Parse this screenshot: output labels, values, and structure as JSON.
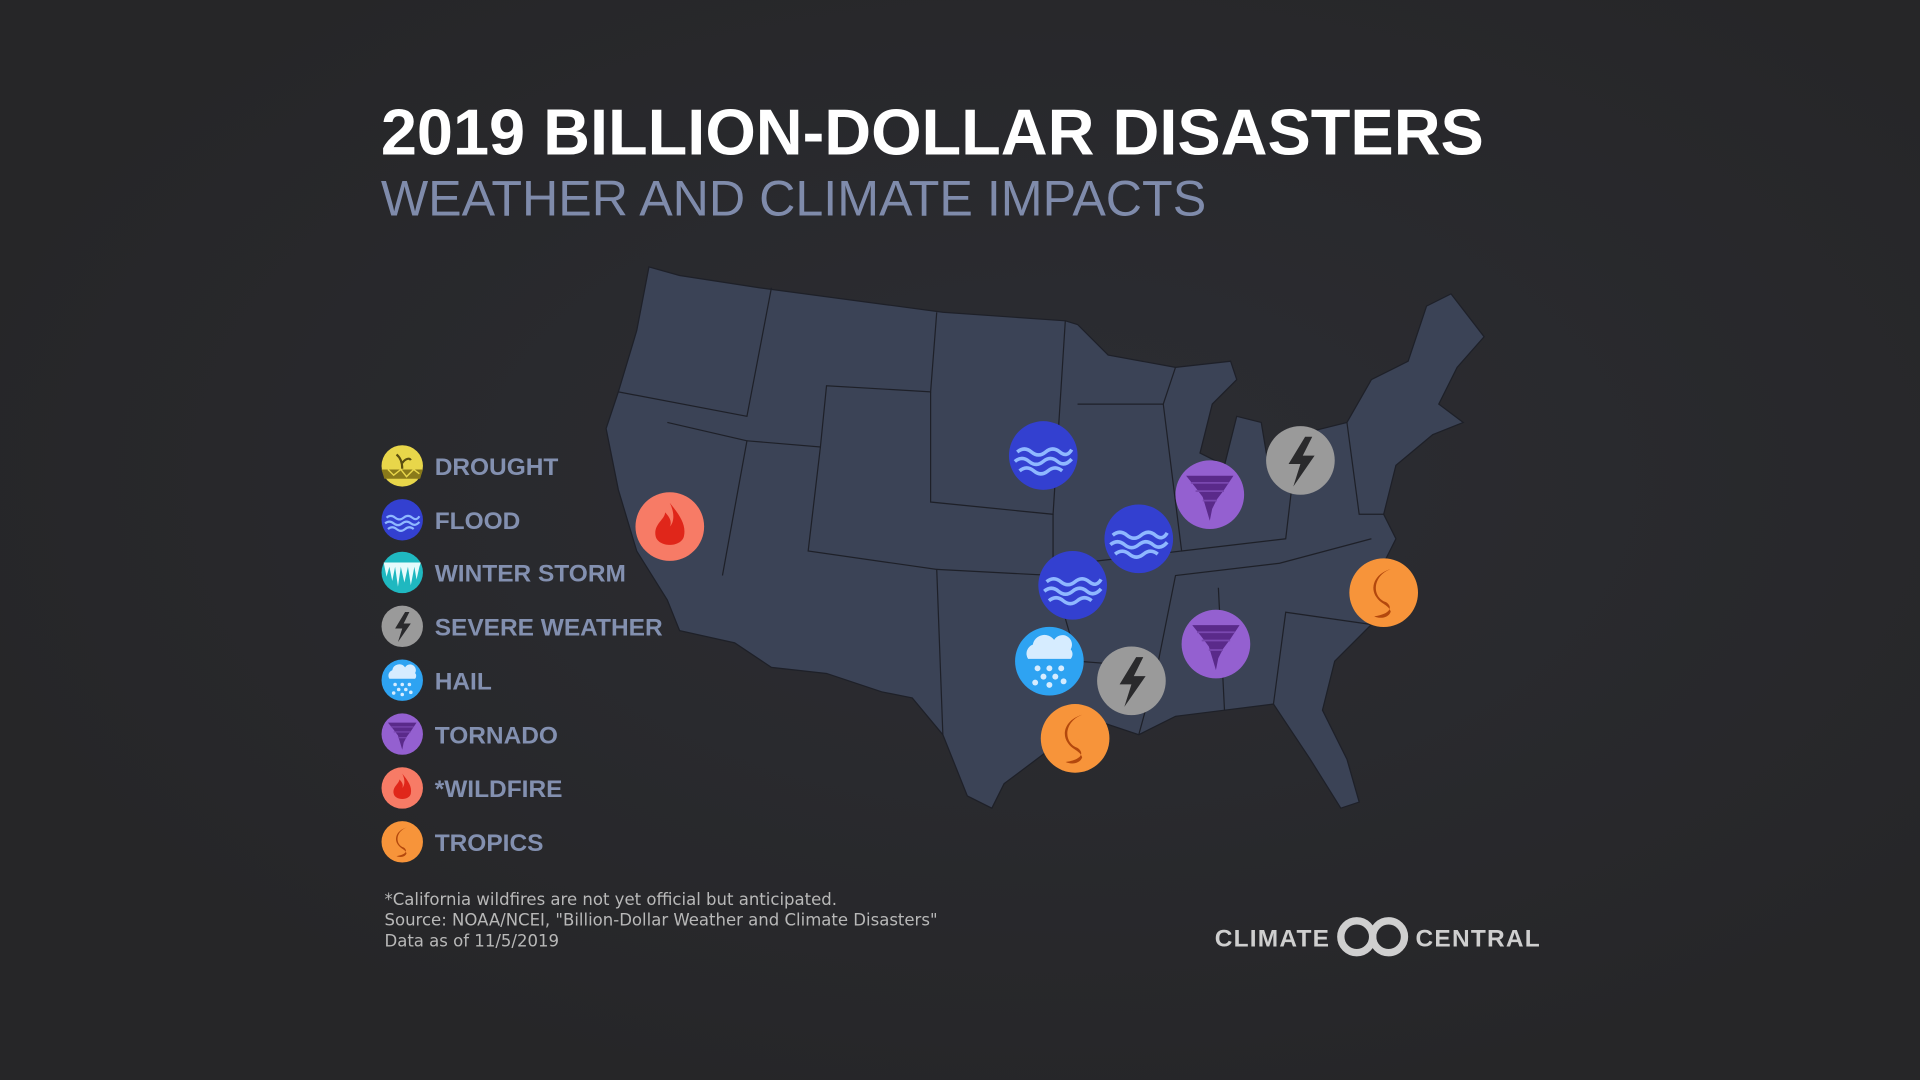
{
  "header": {
    "title": "2019 BILLION-DOLLAR DISASTERS",
    "subtitle": "WEATHER AND CLIMATE IMPACTS"
  },
  "legend": [
    {
      "label": "DROUGHT",
      "icon": "drought-icon",
      "color": "#e8d64a"
    },
    {
      "label": "FLOOD",
      "icon": "flood-icon",
      "color": "#3340d0"
    },
    {
      "label": "WINTER STORM",
      "icon": "winter-storm-icon",
      "color": "#1fb8c0"
    },
    {
      "label": "SEVERE WEATHER",
      "icon": "lightning-icon",
      "color": "#9a9a9a"
    },
    {
      "label": "HAIL",
      "icon": "hail-icon",
      "color": "#2ea3f2"
    },
    {
      "label": "TORNADO",
      "icon": "tornado-icon",
      "color": "#9460d0"
    },
    {
      "label": "*WILDFIRE",
      "icon": "fire-icon",
      "color": "#f77b66"
    },
    {
      "label": "TROPICS",
      "icon": "hurricane-icon",
      "color": "#f7943a"
    }
  ],
  "map_events": [
    "flood",
    "flood",
    "flood",
    "severe weather",
    "severe weather",
    "tornado",
    "tornado",
    "wildfire",
    "hail",
    "tropics",
    "tropics"
  ],
  "footnote": {
    "line1": "*California wildfires are not yet official but anticipated.",
    "line2": "Source: NOAA/NCEI, \"Billion-Dollar Weather and Climate Disasters\"",
    "line3": "Data as of 11/5/2019"
  },
  "logo": {
    "left": "CLIMATE",
    "right": "CENTRAL"
  }
}
